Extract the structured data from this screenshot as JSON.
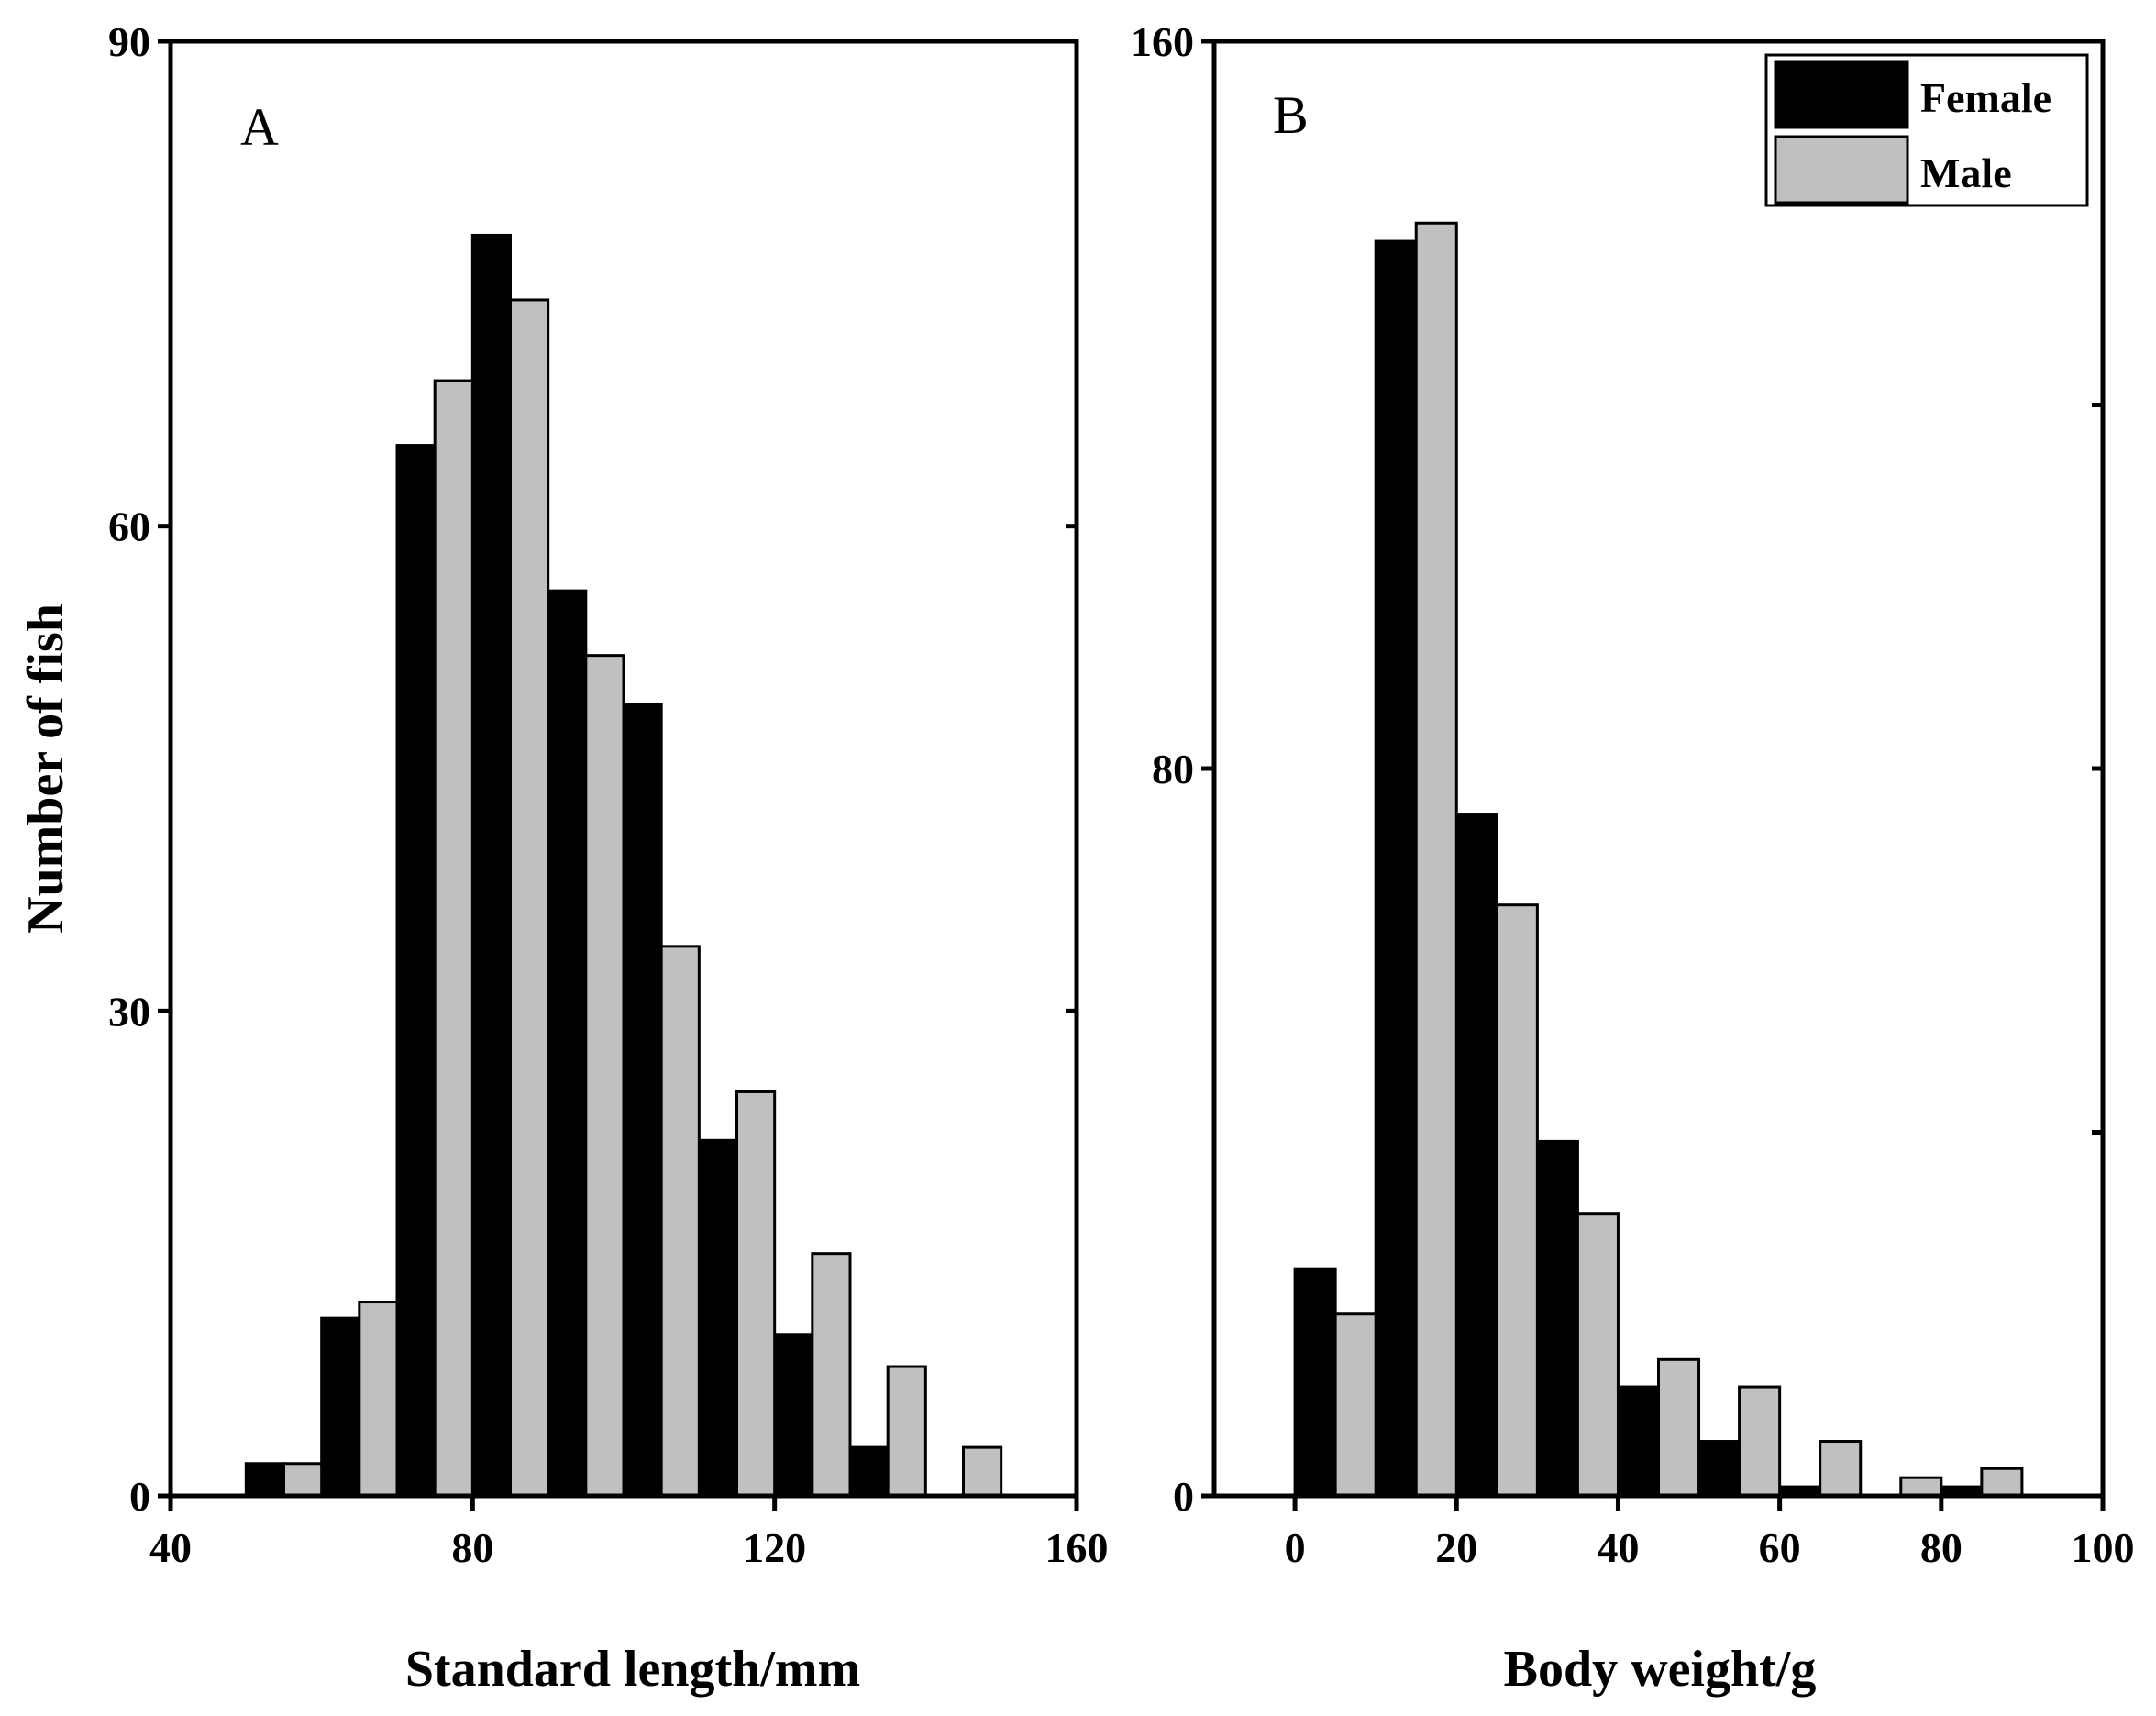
{
  "chart_data": [
    {
      "panel": "A",
      "panel_label": "A",
      "type": "bar",
      "title": "",
      "xlabel": "Standard length/mm",
      "ylabel": "Number of fish",
      "xlim": [
        40,
        160
      ],
      "ylim": [
        0,
        90
      ],
      "xticks": [
        "40",
        "80",
        "120",
        "160"
      ],
      "yticks": [
        "0",
        "30",
        "60",
        "90"
      ],
      "bin_width": 10,
      "bin_starts": [
        50,
        60,
        70,
        80,
        90,
        100,
        110,
        120,
        130,
        140
      ],
      "series": [
        {
          "name": "Female",
          "color": "#000000",
          "values": [
            2,
            11,
            65,
            78,
            56,
            49,
            22,
            10,
            3,
            0
          ]
        },
        {
          "name": "Male",
          "color": "#c0c0c0",
          "values": [
            2,
            12,
            69,
            74,
            52,
            34,
            25,
            15,
            8,
            3
          ]
        }
      ]
    },
    {
      "panel": "B",
      "panel_label": "B",
      "type": "bar",
      "title": "",
      "xlabel": "Body weight/g",
      "ylabel": "",
      "xlim": [
        -10,
        100
      ],
      "ylim": [
        0,
        160
      ],
      "xticks": [
        "0",
        "20",
        "40",
        "60",
        "80",
        "100"
      ],
      "yticks": [
        "0",
        "80",
        "160"
      ],
      "bin_width": 10,
      "bin_starts": [
        0,
        10,
        20,
        30,
        40,
        50,
        60,
        70,
        80
      ],
      "series": [
        {
          "name": "Female",
          "color": "#000000",
          "values": [
            25,
            138,
            75,
            39,
            12,
            6,
            1,
            0,
            1
          ]
        },
        {
          "name": "Male",
          "color": "#c0c0c0",
          "values": [
            20,
            140,
            65,
            31,
            15,
            12,
            6,
            2,
            3
          ]
        }
      ],
      "legend": {
        "position": "top-right",
        "entries": [
          {
            "label": "Female",
            "color": "#000000"
          },
          {
            "label": "Male",
            "color": "#c0c0c0"
          }
        ]
      }
    }
  ]
}
